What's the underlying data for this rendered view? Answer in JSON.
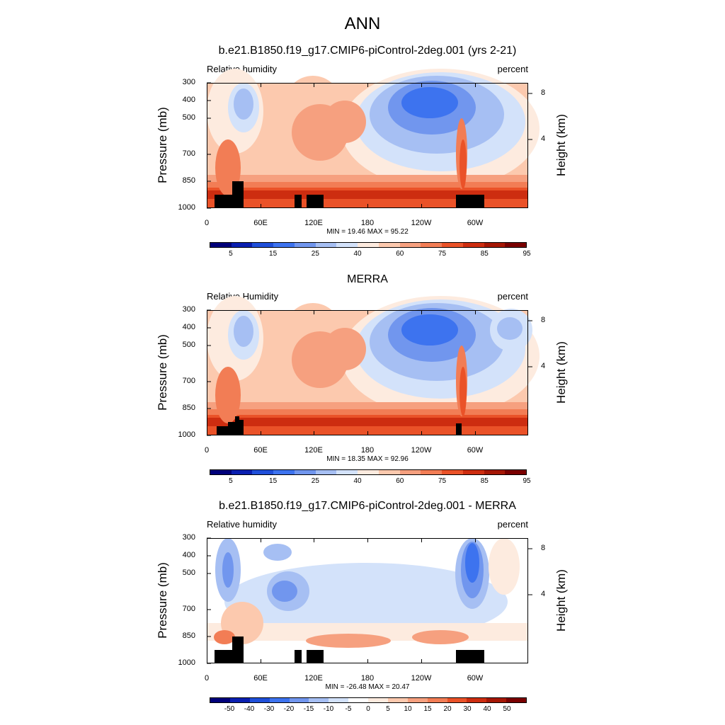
{
  "figure": {
    "title": "ANN"
  },
  "colors": {
    "abs": [
      "#00007a",
      "#0a1fb0",
      "#1f4fd9",
      "#3d73ef",
      "#7196ee",
      "#a6bff3",
      "#d3e2fa",
      "#fdebdf",
      "#fcc9ae",
      "#f6a07f",
      "#f27d55",
      "#ea5228",
      "#cd2d10",
      "#a51705",
      "#7a0000"
    ],
    "diff": [
      "#00007a",
      "#0a1fb0",
      "#1f4fd9",
      "#3d73ef",
      "#7196ee",
      "#a6bff3",
      "#d3e2fa",
      "#ffffff",
      "#fdebdf",
      "#fcc9ae",
      "#f6a07f",
      "#f27d55",
      "#ea5228",
      "#cd2d10",
      "#a51705",
      "#7a0000"
    ]
  },
  "panels": [
    {
      "title": "b.e21.B1850.f19_g17.CMIP6-piControl-2deg.001 (yrs 2-21)",
      "variable_label": "Relative humidity",
      "units": "percent",
      "y_axis_title": "Pressure (mb)",
      "right_axis_title": "Height (km)",
      "minmax": "MIN = 19.46  MAX = 95.22",
      "colorbar_labels": [
        "5",
        "15",
        "25",
        "40",
        "60",
        "75",
        "85",
        "95"
      ]
    },
    {
      "title": "MERRA",
      "variable_label": "Relative Humidity",
      "units": "percent",
      "y_axis_title": "Pressure (mb)",
      "right_axis_title": "Height (km)",
      "minmax": "MIN = 18.35  MAX = 92.96",
      "colorbar_labels": [
        "5",
        "15",
        "25",
        "40",
        "60",
        "75",
        "85",
        "95"
      ]
    },
    {
      "title": "b.e21.B1850.f19_g17.CMIP6-piControl-2deg.001 - MERRA",
      "variable_label": "Relative humidity",
      "units": "percent",
      "y_axis_title": "Pressure (mb)",
      "right_axis_title": "Height (km)",
      "minmax": "MIN = -26.48  MAX = 20.47",
      "colorbar_labels": [
        "-50",
        "-40",
        "-30",
        "-20",
        "-15",
        "-10",
        "-5",
        "0",
        "5",
        "10",
        "15",
        "20",
        "30",
        "40",
        "50"
      ]
    }
  ],
  "axes": {
    "pressure_ticks": [
      "300",
      "400",
      "500",
      "700",
      "850",
      "1000"
    ],
    "lon_ticks": [
      "0",
      "60E",
      "120E",
      "180",
      "120W",
      "60W"
    ],
    "height_ticks": [
      "8",
      "4"
    ]
  },
  "chart_data": [
    {
      "type": "heatmap",
      "title": "b.e21.B1850.f19_g17.CMIP6-piControl-2deg.001 (yrs 2-21)",
      "variable": "Relative humidity",
      "units": "percent",
      "xlabel": "",
      "ylabel": "Pressure (mb)",
      "x_ticks": [
        "0",
        "60E",
        "120E",
        "180",
        "120W",
        "60W"
      ],
      "y_ticks": [
        300,
        400,
        500,
        700,
        850,
        1000
      ],
      "ylim": [
        1000,
        300
      ],
      "right_axis": {
        "label": "Height (km)",
        "ticks": [
          8,
          4
        ]
      },
      "levels": [
        5,
        15,
        25,
        40,
        60,
        75,
        85,
        95
      ],
      "min": 19.46,
      "max": 95.22
    },
    {
      "type": "heatmap",
      "title": "MERRA",
      "variable": "Relative Humidity",
      "units": "percent",
      "xlabel": "",
      "ylabel": "Pressure (mb)",
      "x_ticks": [
        "0",
        "60E",
        "120E",
        "180",
        "120W",
        "60W"
      ],
      "y_ticks": [
        300,
        400,
        500,
        700,
        850,
        1000
      ],
      "ylim": [
        1000,
        300
      ],
      "right_axis": {
        "label": "Height (km)",
        "ticks": [
          8,
          4
        ]
      },
      "levels": [
        5,
        15,
        25,
        40,
        60,
        75,
        85,
        95
      ],
      "min": 18.35,
      "max": 92.96
    },
    {
      "type": "heatmap",
      "title": "b.e21.B1850.f19_g17.CMIP6-piControl-2deg.001 - MERRA",
      "variable": "Relative humidity",
      "units": "percent",
      "xlabel": "",
      "ylabel": "Pressure (mb)",
      "x_ticks": [
        "0",
        "60E",
        "120E",
        "180",
        "120W",
        "60W"
      ],
      "y_ticks": [
        300,
        400,
        500,
        700,
        850,
        1000
      ],
      "ylim": [
        1000,
        300
      ],
      "right_axis": {
        "label": "Height (km)",
        "ticks": [
          8,
          4
        ]
      },
      "levels": [
        -50,
        -40,
        -30,
        -20,
        -15,
        -10,
        -5,
        0,
        5,
        10,
        15,
        20,
        30,
        40,
        50
      ],
      "min": -26.48,
      "max": 20.47
    }
  ]
}
